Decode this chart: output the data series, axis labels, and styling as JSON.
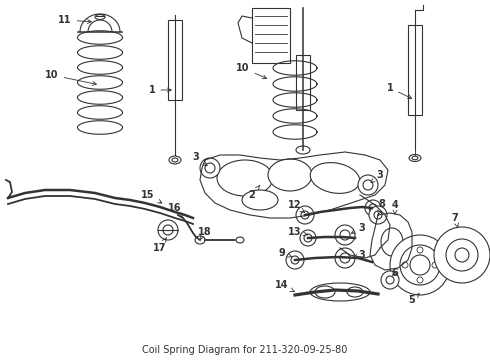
{
  "title": "Coil Spring Diagram for 211-320-09-25-80",
  "bg_color": "#ffffff",
  "line_color": "#333333",
  "fig_width": 4.9,
  "fig_height": 3.6,
  "dpi": 100
}
